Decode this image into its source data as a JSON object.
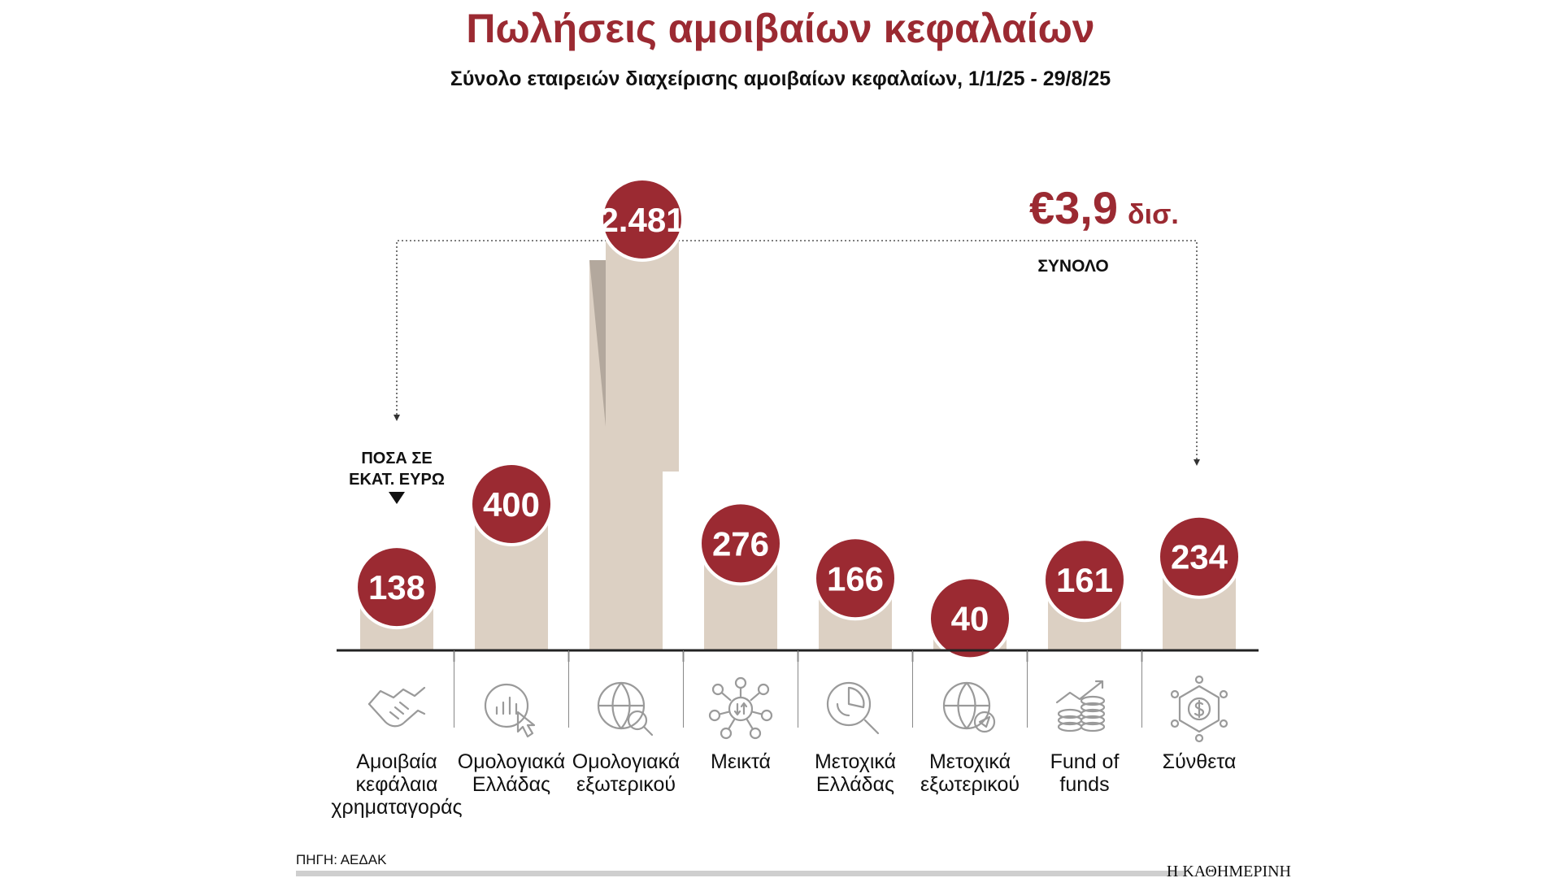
{
  "title": "Πωλήσεις αμοιβαίων κεφαλαίων",
  "subtitle": "Σύνολο εταιρειών διαχείρισης αμοιβαίων κεφαλαίων, 1/1/25 - 29/8/25",
  "unit_note_line1": "ΠΟΣΑ ΣΕ",
  "unit_note_line2": "ΕΚΑΤ. ΕΥΡΩ",
  "total_value": "€3,9",
  "total_suffix": "δισ.",
  "total_label": "ΣΥΝΟΛΟ",
  "source": "ΠΗΓΗ: ΑΕΔΑΚ",
  "brand": "Η ΚΑΘΗΜΕΡΙΝΗ",
  "colors": {
    "accent": "#9b2a32",
    "bar": "#dcd0c3",
    "bar_shadow": "#b3a89d",
    "icon": "#9a9a9a",
    "axis": "#222222"
  },
  "chart_data": {
    "type": "bar",
    "title": "Πωλήσεις αμοιβαίων κεφαλαίων",
    "subtitle": "Σύνολο εταιρειών διαχείρισης αμοιβαίων κεφαλαίων, 1/1/25 - 29/8/25",
    "ylabel": "ΠΟΣΑ ΣΕ ΕΚΑΤ. ΕΥΡΩ",
    "categories": [
      "Αμοιβαία κεφάλαια χρηματαγοράς",
      "Ομολογιακά Ελλάδας",
      "Ομολογιακά εξωτερικού",
      "Μεικτά",
      "Μετοχικά Ελλάδας",
      "Μετοχικά εξωτερικού",
      "Fund of funds",
      "Σύνθετα"
    ],
    "label_lines": [
      [
        "Αμοιβαία",
        "κεφάλαια",
        "χρηματαγοράς"
      ],
      [
        "Ομολογιακά",
        "Ελλάδας"
      ],
      [
        "Ομολογιακά",
        "εξωτερικού"
      ],
      [
        "Μεικτά"
      ],
      [
        "Μετοχικά",
        "Ελλάδας"
      ],
      [
        "Μετοχικά",
        "εξωτερικού"
      ],
      [
        "Fund of",
        "funds"
      ],
      [
        "Σύνθετα"
      ]
    ],
    "values": [
      138,
      400,
      2481,
      276,
      166,
      40,
      161,
      234
    ],
    "value_labels": [
      "138",
      "400",
      "2.481",
      "276",
      "166",
      "40",
      "161",
      "234"
    ],
    "icons": [
      "handshake-icon",
      "touch-chart-icon",
      "globe-search-icon",
      "network-arrows-icon",
      "pie-search-icon",
      "globe-send-icon",
      "coins-growth-icon",
      "dollar-network-icon"
    ],
    "broken_axis_index": 2,
    "grid": false,
    "legend": "none"
  }
}
